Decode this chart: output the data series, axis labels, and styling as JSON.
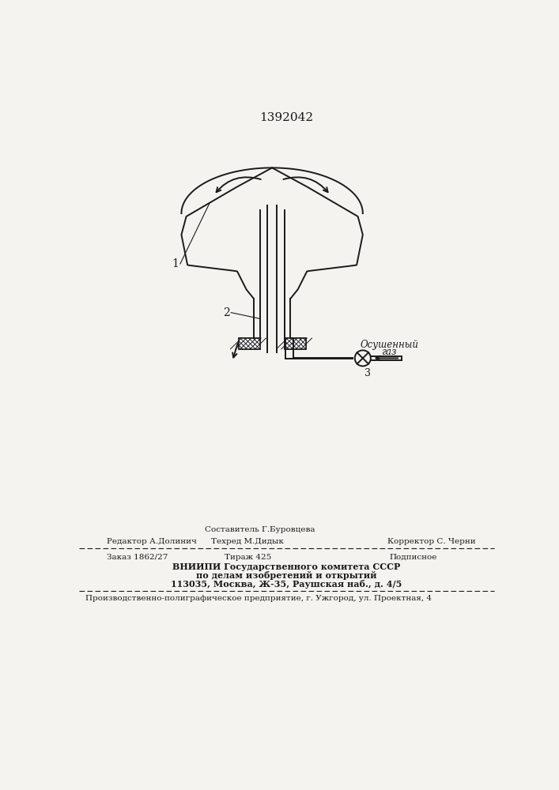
{
  "patent_number": "1392042",
  "background_color": "#f5f3ef",
  "line_color": "#1a1a1a",
  "label1": "1",
  "label2": "2",
  "label3": "3",
  "label_osush_line1": "Осушенный",
  "label_osush_line2": "газ",
  "footer_line0_col2": "Составитель Г.Буровцева",
  "footer_line1_col1": "Редактор А.Долинич",
  "footer_line1_col2": "Техред М.Дидык",
  "footer_line1_col3": "Корректор С. Черни",
  "footer2_col1": "Заказ 1862/27",
  "footer2_col2": "Тираж 425",
  "footer2_col3": "Подписное",
  "footer3": "ВНИИПИ Государственного комитета СССР",
  "footer4": "по делам изобретений и открытий",
  "footer5": "113035, Москва, Ж-35, Раушская наб., д. 4/5",
  "footer6": "Производственно-полиграфическое предприятие, г. Ужгород, ул. Проектная, 4"
}
